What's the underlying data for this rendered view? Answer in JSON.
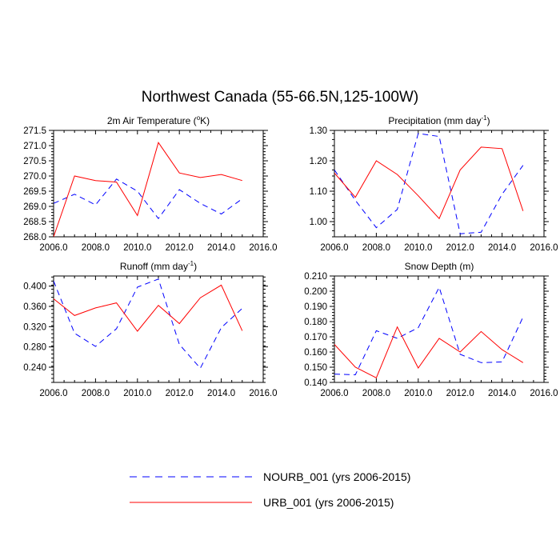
{
  "figure": {
    "title": "Northwest Canada (55-66.5N,125-100W)"
  },
  "legend": {
    "entries": [
      {
        "label": "NOURB_001 (yrs 2006-2015)",
        "color": "#0000ff",
        "dash": "dashed"
      },
      {
        "label": "URB_001 (yrs 2006-2015)",
        "color": "#ff0000",
        "dash": "solid"
      }
    ]
  },
  "chart_data": [
    {
      "type": "line",
      "title": "2m Air Temperature (°K)",
      "title_main": "2m Air Temperature (",
      "title_sup": "o",
      "title_end": "K)",
      "xlim": [
        2006,
        2016
      ],
      "ylim": [
        268.0,
        271.5
      ],
      "xticks": [
        "2006.0",
        "2008.0",
        "2010.0",
        "2012.0",
        "2014.0",
        "2016.0"
      ],
      "xtick_values": [
        2006,
        2008,
        2010,
        2012,
        2014,
        2016
      ],
      "yticks": [
        "268.0",
        "268.5",
        "269.0",
        "269.5",
        "270.0",
        "270.5",
        "271.0",
        "271.5"
      ],
      "ytick_values": [
        268.0,
        268.5,
        269.0,
        269.5,
        270.0,
        270.5,
        271.0,
        271.5
      ],
      "x": [
        2006,
        2007,
        2008,
        2009,
        2010,
        2011,
        2012,
        2013,
        2014,
        2015
      ],
      "series": [
        {
          "name": "NOURB_001 (yrs 2006-2015)",
          "values": [
            269.1,
            269.4,
            269.05,
            269.9,
            269.5,
            268.6,
            269.55,
            269.1,
            268.75,
            269.25
          ]
        },
        {
          "name": "URB_001 (yrs 2006-2015)",
          "values": [
            268.0,
            270.0,
            269.85,
            269.8,
            268.7,
            271.1,
            270.1,
            269.95,
            270.05,
            269.85
          ]
        }
      ]
    },
    {
      "type": "line",
      "title": "Precipitation (mm day-1)",
      "title_main": "Precipitation (mm day",
      "title_sup": "-1",
      "title_end": ")",
      "xlim": [
        2006,
        2016
      ],
      "ylim": [
        0.95,
        1.3
      ],
      "xticks": [
        "2006.0",
        "2008.0",
        "2010.0",
        "2012.0",
        "2014.0",
        "2016.0"
      ],
      "xtick_values": [
        2006,
        2008,
        2010,
        2012,
        2014,
        2016
      ],
      "yticks": [
        "1.00",
        "1.10",
        "1.20",
        "1.30"
      ],
      "ytick_values": [
        1.0,
        1.1,
        1.2,
        1.3
      ],
      "x": [
        2006,
        2007,
        2008,
        2009,
        2010,
        2011,
        2012,
        2013,
        2014,
        2015
      ],
      "series": [
        {
          "name": "NOURB_001 (yrs 2006-2015)",
          "values": [
            1.17,
            1.07,
            0.98,
            1.04,
            1.29,
            1.28,
            0.96,
            0.965,
            1.09,
            1.185
          ]
        },
        {
          "name": "URB_001 (yrs 2006-2015)",
          "values": [
            1.16,
            1.08,
            1.2,
            1.155,
            1.085,
            1.01,
            1.17,
            1.245,
            1.24,
            1.035
          ]
        }
      ]
    },
    {
      "type": "line",
      "title": "Runoff (mm day-1)",
      "title_main": "Runoff (mm day",
      "title_sup": "-1",
      "title_end": ")",
      "xlim": [
        2006,
        2016
      ],
      "ylim": [
        0.21,
        0.42
      ],
      "xticks": [
        "2006.0",
        "2008.0",
        "2010.0",
        "2012.0",
        "2014.0",
        "2016.0"
      ],
      "xtick_values": [
        2006,
        2008,
        2010,
        2012,
        2014,
        2016
      ],
      "yticks": [
        "0.240",
        "0.280",
        "0.320",
        "0.360",
        "0.400"
      ],
      "ytick_values": [
        0.24,
        0.28,
        0.32,
        0.36,
        0.4
      ],
      "x": [
        2006,
        2007,
        2008,
        2009,
        2010,
        2011,
        2012,
        2013,
        2014,
        2015
      ],
      "series": [
        {
          "name": "NOURB_001 (yrs 2006-2015)",
          "values": [
            0.41,
            0.307,
            0.281,
            0.316,
            0.398,
            0.414,
            0.285,
            0.238,
            0.318,
            0.356
          ]
        },
        {
          "name": "URB_001 (yrs 2006-2015)",
          "values": [
            0.375,
            0.342,
            0.357,
            0.367,
            0.311,
            0.362,
            0.326,
            0.377,
            0.402,
            0.312
          ]
        }
      ]
    },
    {
      "type": "line",
      "title": "Snow Depth (m)",
      "title_main": "Snow Depth (m)",
      "title_sup": "",
      "title_end": "",
      "xlim": [
        2006,
        2016
      ],
      "ylim": [
        0.14,
        0.21
      ],
      "xticks": [
        "2006.0",
        "2008.0",
        "2010.0",
        "2012.0",
        "2014.0",
        "2016.0"
      ],
      "xtick_values": [
        2006,
        2008,
        2010,
        2012,
        2014,
        2016
      ],
      "yticks": [
        "0.140",
        "0.150",
        "0.160",
        "0.170",
        "0.180",
        "0.190",
        "0.200",
        "0.210"
      ],
      "ytick_values": [
        0.14,
        0.15,
        0.16,
        0.17,
        0.18,
        0.19,
        0.2,
        0.21
      ],
      "x": [
        2006,
        2007,
        2008,
        2009,
        2010,
        2011,
        2012,
        2013,
        2014,
        2015
      ],
      "series": [
        {
          "name": "NOURB_001 (yrs 2006-2015)",
          "values": [
            0.1455,
            0.145,
            0.174,
            0.169,
            0.176,
            0.2025,
            0.1585,
            0.153,
            0.1535,
            0.183
          ]
        },
        {
          "name": "URB_001 (yrs 2006-2015)",
          "values": [
            0.165,
            0.15,
            0.143,
            0.1765,
            0.1495,
            0.169,
            0.16,
            0.1735,
            0.1615,
            0.153
          ]
        }
      ]
    }
  ]
}
